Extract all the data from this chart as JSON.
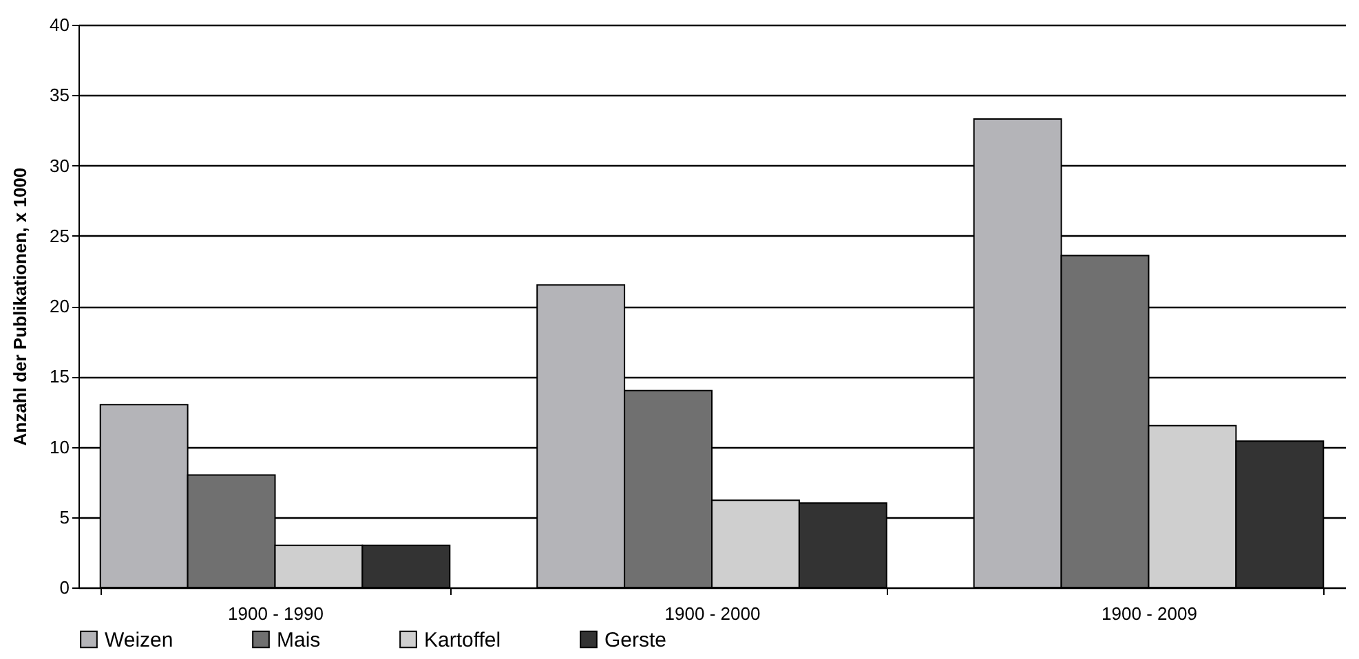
{
  "chart_data": {
    "type": "bar",
    "ylabel": "Anzahl der Publikationen, x 1000",
    "categories": [
      "1900 - 1990",
      "1900 - 2000",
      "1900 - 2009"
    ],
    "series": [
      {
        "name": "Weizen",
        "color": "#b4b4b8",
        "values": [
          13,
          21.5,
          33.3
        ]
      },
      {
        "name": "Mais",
        "color": "#707070",
        "values": [
          8,
          14,
          23.6
        ]
      },
      {
        "name": "Kartoffel",
        "color": "#cfcfcf",
        "values": [
          3,
          6.2,
          11.5
        ]
      },
      {
        "name": "Gerste",
        "color": "#333333",
        "values": [
          3,
          6,
          10.4
        ]
      }
    ],
    "ylim": [
      0,
      40
    ],
    "yticks": [
      0,
      5,
      10,
      15,
      20,
      25,
      30,
      35,
      40
    ],
    "grid": "y",
    "legend": "bottom"
  }
}
